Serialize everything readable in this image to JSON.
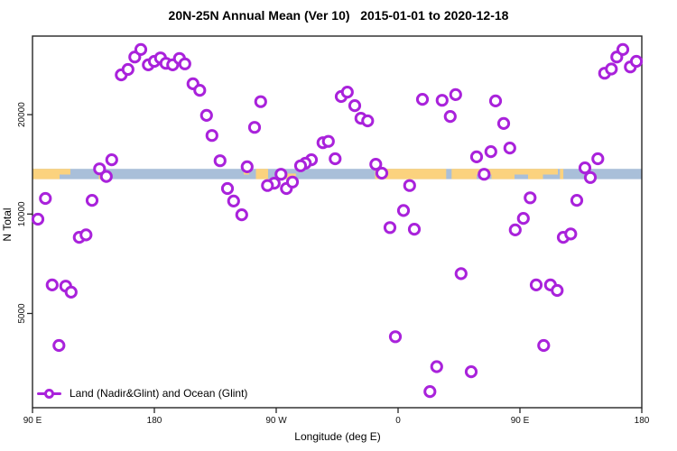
{
  "chart_data": {
    "type": "scatter",
    "title": "20N-25N Annual Mean (Ver 10)   2015-01-01 to 2020-12-18",
    "xlabel": "Longitude (deg E)",
    "ylabel": "N Total",
    "x_axis": {
      "range_deg": [
        90,
        540
      ],
      "ticks": [
        {
          "pos": 90,
          "label": "90 E"
        },
        {
          "pos": 180,
          "label": "180"
        },
        {
          "pos": 270,
          "label": "90 W"
        },
        {
          "pos": 360,
          "label": "0"
        },
        {
          "pos": 450,
          "label": "90 E"
        },
        {
          "pos": 540,
          "label": "180"
        }
      ]
    },
    "y_axis": {
      "scale": "log10",
      "range": [
        2600,
        34600
      ],
      "ticks": [
        {
          "value": 5000,
          "label": "5000"
        },
        {
          "value": 10000,
          "label": "10000"
        },
        {
          "value": 20000,
          "label": "20000"
        }
      ]
    },
    "legend": {
      "label": "Land (Nadir&Glint) and Ocean (Glint)",
      "position": "bottom-left",
      "marker": "line-with-open-circle"
    },
    "style": {
      "point_color": "#A922DB",
      "point_fill": "#FFFFFF",
      "ocean_color": "#A9BFD9",
      "land_color": "#FBD27E",
      "axis_color": "#262626",
      "background": "#FFFFFF"
    },
    "map_band": {
      "value_top": 13700,
      "value_bottom": 12750,
      "land_segments": [
        {
          "from": 90,
          "to": 110,
          "part": "full"
        },
        {
          "from": 110,
          "to": 118,
          "part": "top"
        },
        {
          "from": 139,
          "to": 143,
          "part": "bottom"
        },
        {
          "from": 246,
          "to": 250,
          "part": "top"
        },
        {
          "from": 255,
          "to": 264,
          "part": "full"
        },
        {
          "from": 275.5,
          "to": 284.5,
          "part": "bottom"
        },
        {
          "from": 343,
          "to": 395.5,
          "part": "full"
        },
        {
          "from": 399.5,
          "to": 418,
          "part": "full"
        },
        {
          "from": 418,
          "to": 429,
          "part": "top"
        },
        {
          "from": 429,
          "to": 446,
          "part": "full"
        },
        {
          "from": 446,
          "to": 456,
          "part": "top"
        },
        {
          "from": 456,
          "to": 467,
          "part": "full"
        },
        {
          "from": 467,
          "to": 478,
          "part": "top"
        },
        {
          "from": 479.5,
          "to": 482,
          "part": "full"
        }
      ]
    },
    "points": [
      [
        155.5,
        26400
      ],
      [
        160.5,
        27400
      ],
      [
        165.5,
        29900
      ],
      [
        170,
        31500
      ],
      [
        175.5,
        28300
      ],
      [
        180,
        29000
      ],
      [
        184.5,
        29700
      ],
      [
        188.5,
        28600
      ],
      [
        193.5,
        28300
      ],
      [
        198.5,
        29600
      ],
      [
        202.5,
        28500
      ],
      [
        208.5,
        24800
      ],
      [
        213.5,
        23700
      ],
      [
        218.5,
        19900
      ],
      [
        222.5,
        17300
      ],
      [
        228.5,
        14500
      ],
      [
        234,
        11950
      ],
      [
        238.5,
        10950
      ],
      [
        139.5,
        13700
      ],
      [
        144.5,
        13000
      ],
      [
        148.5,
        14600
      ],
      [
        134,
        11000
      ],
      [
        99.5,
        11150
      ],
      [
        94,
        9650
      ],
      [
        124.5,
        8500
      ],
      [
        129.5,
        8650
      ],
      [
        104.5,
        6100
      ],
      [
        114.5,
        6050
      ],
      [
        118.5,
        5800
      ],
      [
        109.5,
        4000
      ],
      [
        258.5,
        21900
      ],
      [
        254,
        18300
      ],
      [
        304.5,
        16450
      ],
      [
        308.5,
        16600
      ],
      [
        318,
        22700
      ],
      [
        322.5,
        23400
      ],
      [
        328,
        21300
      ],
      [
        332.5,
        19500
      ],
      [
        337.5,
        19150
      ],
      [
        378,
        22250
      ],
      [
        392.5,
        22100
      ],
      [
        313.5,
        14700
      ],
      [
        296,
        14600
      ],
      [
        291.5,
        14250
      ],
      [
        288,
        14000
      ],
      [
        273.5,
        13200
      ],
      [
        268.5,
        12400
      ],
      [
        263.5,
        12200
      ],
      [
        277.5,
        11950
      ],
      [
        282,
        12500
      ],
      [
        248.5,
        13900
      ],
      [
        244.5,
        9950
      ],
      [
        343.5,
        14150
      ],
      [
        348,
        13300
      ],
      [
        368.5,
        12200
      ],
      [
        364,
        10250
      ],
      [
        354,
        9100
      ],
      [
        372,
        9000
      ],
      [
        512.5,
        26700
      ],
      [
        517.5,
        27500
      ],
      [
        521.5,
        29900
      ],
      [
        526,
        31500
      ],
      [
        531.5,
        27900
      ],
      [
        536,
        29000
      ],
      [
        402.5,
        23000
      ],
      [
        398.5,
        19750
      ],
      [
        432,
        22000
      ],
      [
        438,
        18800
      ],
      [
        442.5,
        15850
      ],
      [
        428.5,
        15450
      ],
      [
        418,
        14900
      ],
      [
        423.5,
        13200
      ],
      [
        507.5,
        14700
      ],
      [
        498,
        13800
      ],
      [
        502,
        12900
      ],
      [
        457.5,
        11200
      ],
      [
        492,
        11000
      ],
      [
        452.5,
        9700
      ],
      [
        446.5,
        8950
      ],
      [
        358,
        4250
      ],
      [
        388.5,
        3450
      ],
      [
        383.5,
        2900
      ],
      [
        482,
        8500
      ],
      [
        487.5,
        8700
      ],
      [
        406.5,
        6600
      ],
      [
        462,
        6100
      ],
      [
        472.5,
        6100
      ],
      [
        477.5,
        5870
      ],
      [
        467.5,
        4000
      ],
      [
        414,
        3330
      ]
    ]
  }
}
